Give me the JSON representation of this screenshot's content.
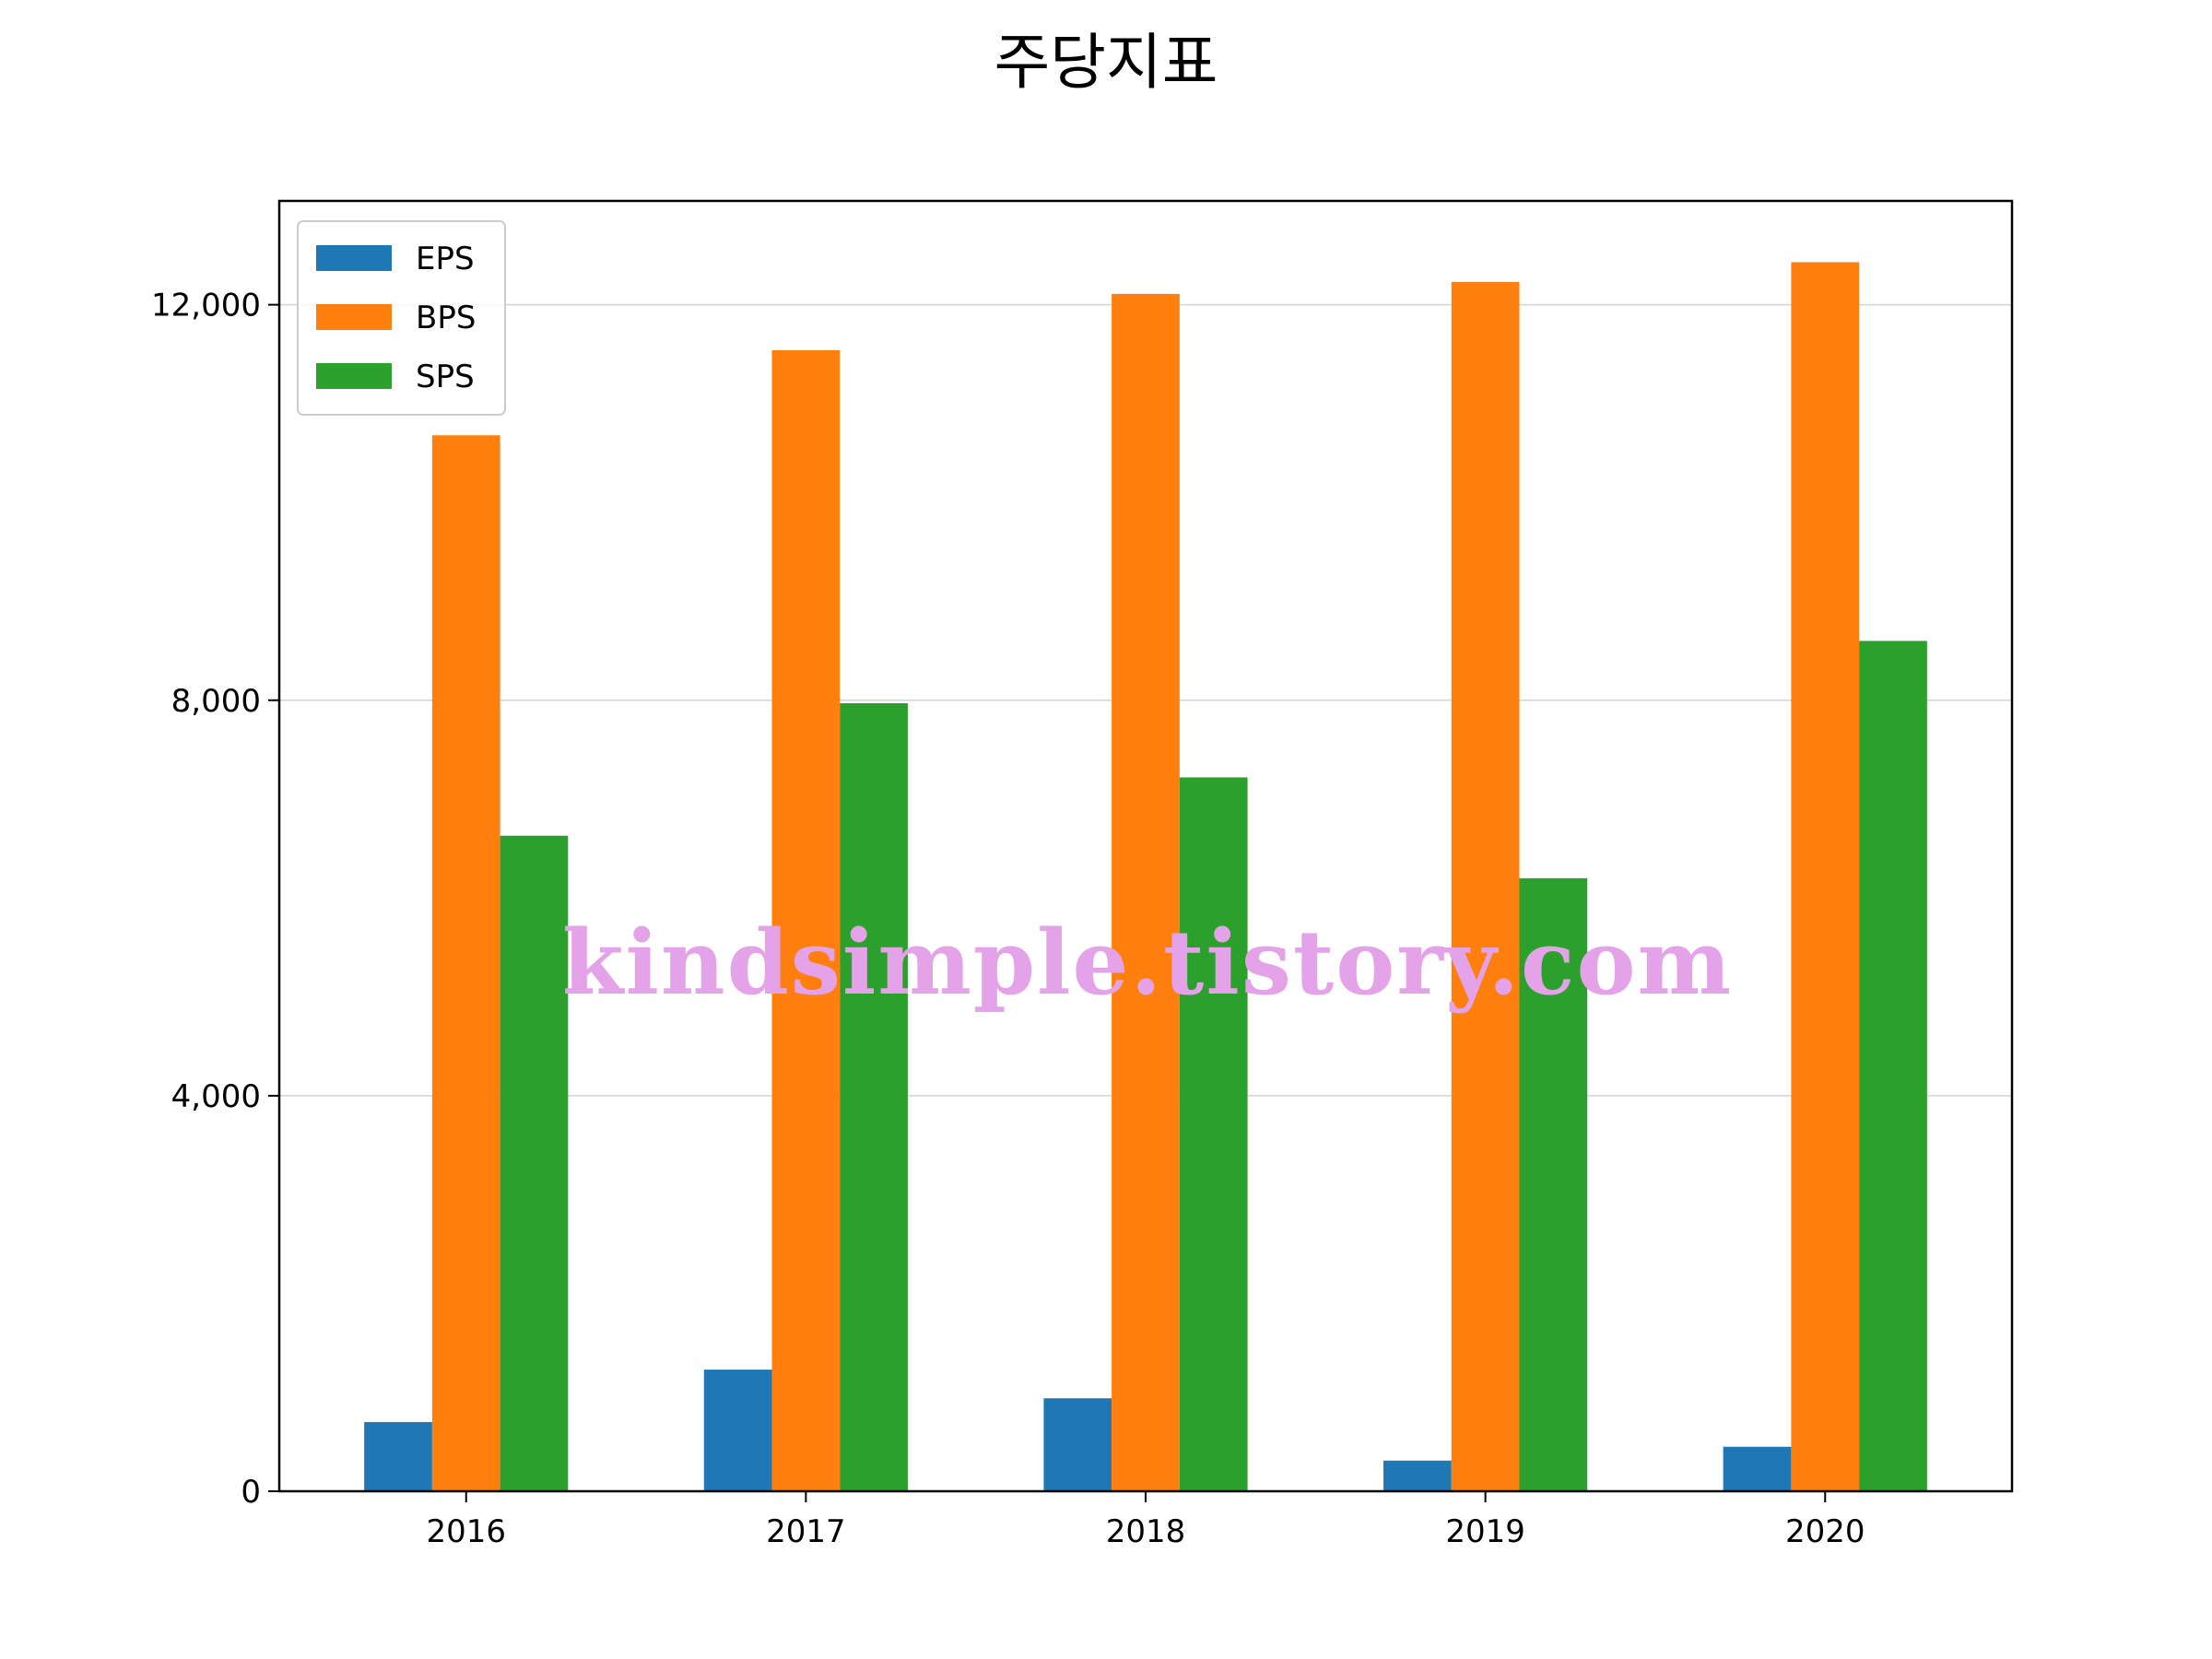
{
  "chart_data": {
    "type": "bar",
    "title": "주당지표",
    "xlabel": "",
    "ylabel": "",
    "categories": [
      "2016",
      "2017",
      "2018",
      "2019",
      "2020"
    ],
    "series": [
      {
        "name": "EPS",
        "color": "#1f77b4",
        "values": [
          700,
          1230,
          940,
          310,
          450
        ]
      },
      {
        "name": "BPS",
        "color": "#ff7f0e",
        "values": [
          10680,
          11540,
          12110,
          12230,
          12430
        ]
      },
      {
        "name": "SPS",
        "color": "#2ca02c",
        "values": [
          6630,
          7970,
          7220,
          6200,
          8600
        ]
      }
    ],
    "ylim": [
      0,
      13050
    ],
    "yticks": [
      0,
      4000,
      8000,
      12000
    ],
    "ytick_labels": [
      "0",
      "4,000",
      "8,000",
      "12,000"
    ],
    "grid": "y",
    "legend": "top-left",
    "watermark": "kindsimple.tistory.com"
  }
}
